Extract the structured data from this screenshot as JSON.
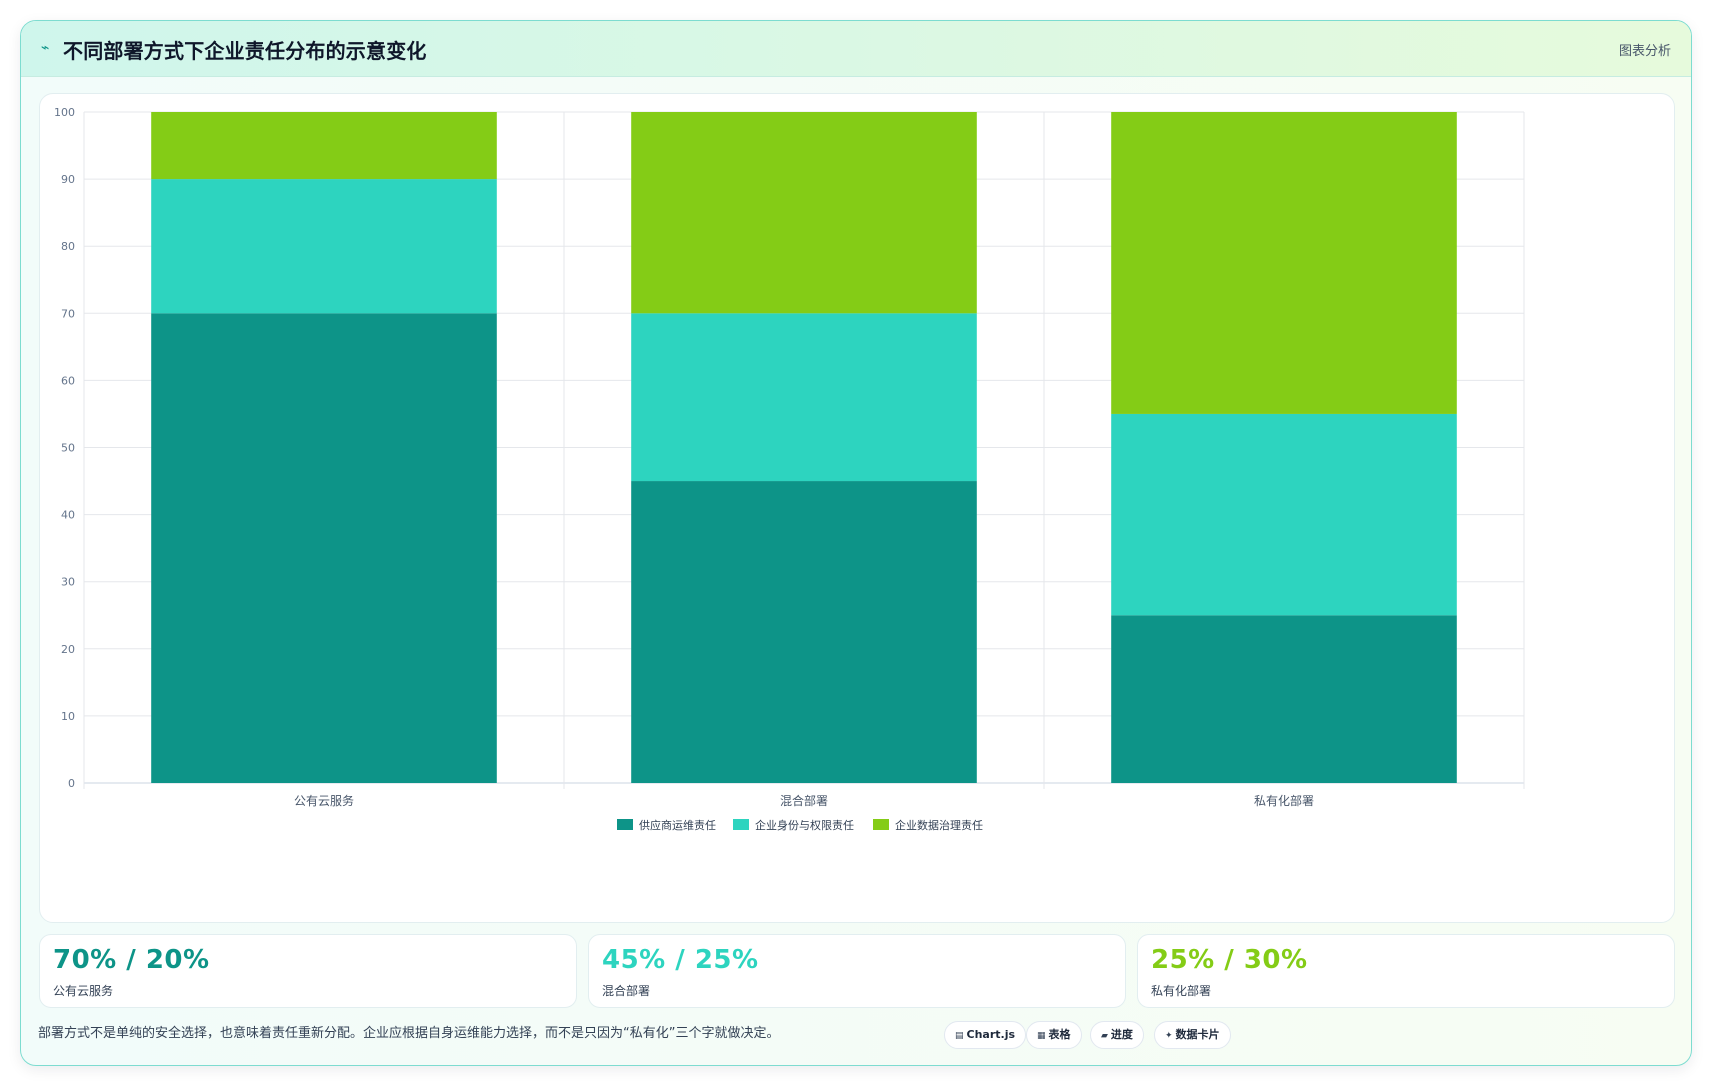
{
  "header": {
    "title": "不同部署方式下企业责任分布的示意变化",
    "icon": "pulse-icon",
    "action_label": "图表分析"
  },
  "chart_data": {
    "type": "bar",
    "stacked": true,
    "categories": [
      "公有云服务",
      "混合部署",
      "私有化部署"
    ],
    "series": [
      {
        "name": "供应商运维责任",
        "color": "#0d9488",
        "values": [
          70,
          45,
          25
        ]
      },
      {
        "name": "企业身份与权限责任",
        "color": "#2dd4bf",
        "values": [
          20,
          25,
          30
        ]
      },
      {
        "name": "企业数据治理责任",
        "color": "#84cc16",
        "values": [
          10,
          30,
          45
        ]
      }
    ],
    "ylim": [
      0,
      100
    ],
    "yticks": [
      0,
      10,
      20,
      30,
      40,
      50,
      60,
      70,
      80,
      90,
      100
    ],
    "grid": true,
    "legend_position": "bottom"
  },
  "stats": [
    {
      "value": "70% / 20%",
      "label": "公有云服务",
      "color": "#0d9488"
    },
    {
      "value": "45% / 25%",
      "label": "混合部署",
      "color": "#2dd4bf"
    },
    {
      "value": "25% / 30%",
      "label": "私有化部署",
      "color": "#84cc16"
    }
  ],
  "footer": {
    "note": "部署方式不是单纯的安全选择，也意味着责任重新分配。企业应根据自身运维能力选择，而不是只因为“私有化”三个字就做决定。"
  },
  "badges": [
    {
      "icon": "chart-icon",
      "glyph": "▤",
      "label": "Chart.js"
    },
    {
      "icon": "table-icon",
      "glyph": "▦",
      "label": "表格"
    },
    {
      "icon": "progress-icon",
      "glyph": "▰",
      "label": "进度"
    },
    {
      "icon": "sparkle-icon",
      "glyph": "✦",
      "label": "数据卡片"
    }
  ]
}
